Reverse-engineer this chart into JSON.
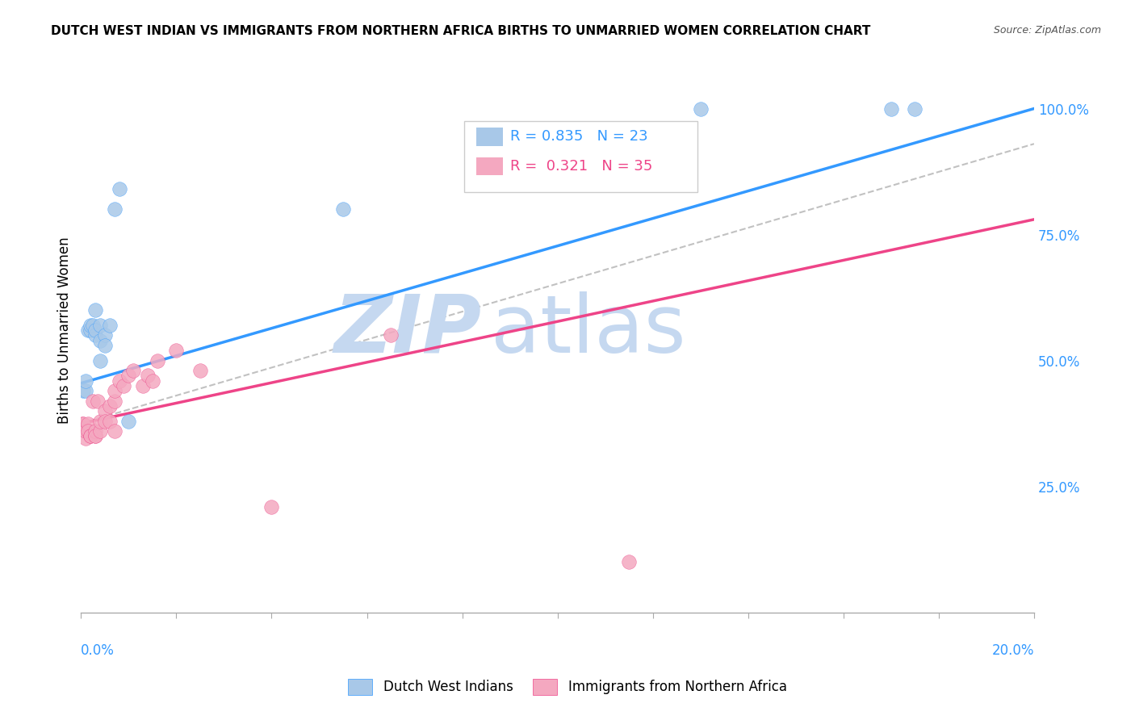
{
  "title": "DUTCH WEST INDIAN VS IMMIGRANTS FROM NORTHERN AFRICA BIRTHS TO UNMARRIED WOMEN CORRELATION CHART",
  "source": "Source: ZipAtlas.com",
  "ylabel": "Births to Unmarried Women",
  "right_yticks": [
    0.25,
    0.5,
    0.75,
    1.0
  ],
  "right_yticklabels": [
    "25.0%",
    "50.0%",
    "75.0%",
    "100.0%"
  ],
  "legend_blue_label": "Dutch West Indians",
  "legend_pink_label": "Immigrants from Northern Africa",
  "R_blue": 0.835,
  "N_blue": 23,
  "R_pink": 0.321,
  "N_pink": 35,
  "blue_color": "#a8c8e8",
  "pink_color": "#f4a8c0",
  "blue_line_color": "#3399ff",
  "pink_line_color": "#ee4488",
  "gray_dash_color": "#bbbbbb",
  "watermark_zip": "ZIP",
  "watermark_atlas": "atlas",
  "watermark_zip_color": "#c5d8f0",
  "watermark_atlas_color": "#c5d8f0",
  "xmin": 0.0,
  "xmax": 0.2,
  "ymin": 0.0,
  "ymax": 1.12,
  "blue_line_x0": 0.0,
  "blue_line_y0": 0.455,
  "blue_line_x1": 0.2,
  "blue_line_y1": 1.0,
  "pink_line_x0": 0.0,
  "pink_line_y0": 0.375,
  "pink_line_x1": 0.2,
  "pink_line_y1": 0.78,
  "gray_line_x0": 0.0,
  "gray_line_y0": 0.375,
  "gray_line_x1": 0.2,
  "gray_line_y1": 0.93,
  "blue_scatter_x": [
    0.0005,
    0.001,
    0.001,
    0.0015,
    0.002,
    0.002,
    0.0025,
    0.003,
    0.003,
    0.003,
    0.004,
    0.004,
    0.004,
    0.005,
    0.005,
    0.006,
    0.007,
    0.008,
    0.01,
    0.055,
    0.13,
    0.17,
    0.175
  ],
  "blue_scatter_y": [
    0.44,
    0.44,
    0.46,
    0.56,
    0.56,
    0.57,
    0.57,
    0.55,
    0.56,
    0.6,
    0.54,
    0.57,
    0.5,
    0.55,
    0.53,
    0.57,
    0.8,
    0.84,
    0.38,
    0.8,
    1.0,
    1.0,
    1.0
  ],
  "pink_scatter_x": [
    0.0003,
    0.0005,
    0.001,
    0.001,
    0.0015,
    0.0015,
    0.002,
    0.002,
    0.0025,
    0.003,
    0.003,
    0.003,
    0.0035,
    0.004,
    0.004,
    0.005,
    0.005,
    0.006,
    0.006,
    0.007,
    0.007,
    0.007,
    0.008,
    0.009,
    0.01,
    0.011,
    0.013,
    0.014,
    0.015,
    0.016,
    0.02,
    0.025,
    0.04,
    0.065,
    0.115
  ],
  "pink_scatter_y": [
    0.375,
    0.375,
    0.345,
    0.36,
    0.375,
    0.36,
    0.35,
    0.35,
    0.42,
    0.35,
    0.36,
    0.35,
    0.42,
    0.36,
    0.38,
    0.4,
    0.38,
    0.41,
    0.38,
    0.42,
    0.44,
    0.36,
    0.46,
    0.45,
    0.47,
    0.48,
    0.45,
    0.47,
    0.46,
    0.5,
    0.52,
    0.48,
    0.21,
    0.55,
    0.1
  ],
  "grid_color": "#dddddd",
  "grid_linestyle": "--"
}
